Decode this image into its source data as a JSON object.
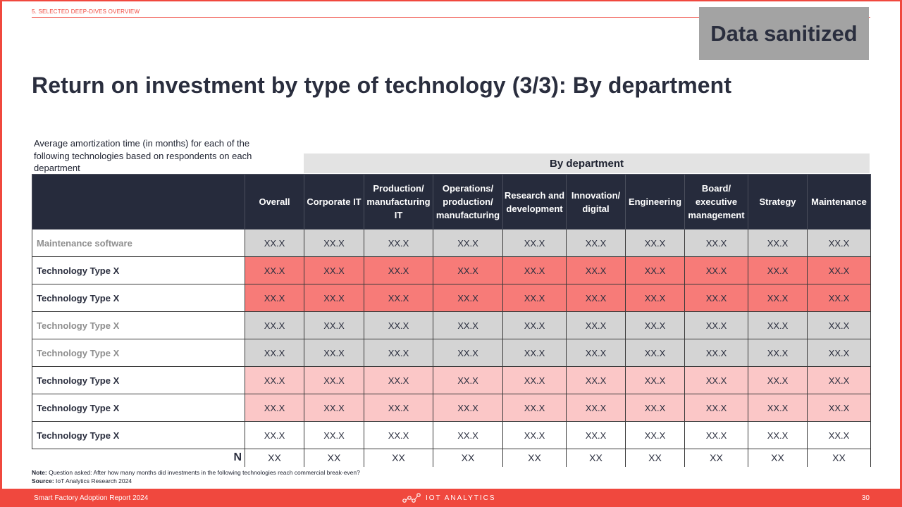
{
  "header": {
    "section_label": "5. SELECTED DEEP-DIVES OVERVIEW",
    "sanitized_badge": "Data sanitized",
    "title": "Return on investment by type of technology (3/3): By department",
    "subtitle": "Average amortization time (in months) for each of the following technologies based on respondents on each department"
  },
  "table": {
    "group_header": "By department",
    "columns": [
      "Overall",
      "Corporate IT",
      "Production/ manufacturing IT",
      "Operations/ production/ manufacturing",
      "Research and development",
      "Innovation/ digital",
      "Engineering",
      "Board/ executive management",
      "Strategy",
      "Maintenance"
    ],
    "rows": [
      {
        "label": "Maintenance software",
        "muted": true,
        "tone": "grey",
        "values": [
          "XX.X",
          "XX.X",
          "XX.X",
          "XX.X",
          "XX.X",
          "XX.X",
          "XX.X",
          "XX.X",
          "XX.X",
          "XX.X"
        ]
      },
      {
        "label": "Technology Type X",
        "muted": false,
        "tone": "red",
        "values": [
          "XX.X",
          "XX.X",
          "XX.X",
          "XX.X",
          "XX.X",
          "XX.X",
          "XX.X",
          "XX.X",
          "XX.X",
          "XX.X"
        ]
      },
      {
        "label": "Technology Type X",
        "muted": false,
        "tone": "red",
        "values": [
          "XX.X",
          "XX.X",
          "XX.X",
          "XX.X",
          "XX.X",
          "XX.X",
          "XX.X",
          "XX.X",
          "XX.X",
          "XX.X"
        ]
      },
      {
        "label": "Technology Type X",
        "muted": true,
        "tone": "grey",
        "values": [
          "XX.X",
          "XX.X",
          "XX.X",
          "XX.X",
          "XX.X",
          "XX.X",
          "XX.X",
          "XX.X",
          "XX.X",
          "XX.X"
        ]
      },
      {
        "label": "Technology Type X",
        "muted": true,
        "tone": "grey",
        "values": [
          "XX.X",
          "XX.X",
          "XX.X",
          "XX.X",
          "XX.X",
          "XX.X",
          "XX.X",
          "XX.X",
          "XX.X",
          "XX.X"
        ]
      },
      {
        "label": "Technology Type X",
        "muted": false,
        "tone": "pink",
        "values": [
          "XX.X",
          "XX.X",
          "XX.X",
          "XX.X",
          "XX.X",
          "XX.X",
          "XX.X",
          "XX.X",
          "XX.X",
          "XX.X"
        ]
      },
      {
        "label": "Technology Type X",
        "muted": false,
        "tone": "pink",
        "values": [
          "XX.X",
          "XX.X",
          "XX.X",
          "XX.X",
          "XX.X",
          "XX.X",
          "XX.X",
          "XX.X",
          "XX.X",
          "XX.X"
        ]
      },
      {
        "label": "Technology Type X",
        "muted": false,
        "tone": "white",
        "values": [
          "XX.X",
          "XX.X",
          "XX.X",
          "XX.X",
          "XX.X",
          "XX.X",
          "XX.X",
          "XX.X",
          "XX.X",
          "XX.X"
        ]
      }
    ],
    "n_label": "N",
    "n_values": [
      "XX",
      "XX",
      "XX",
      "XX",
      "XX",
      "XX",
      "XX",
      "XX",
      "XX",
      "XX"
    ]
  },
  "notes": {
    "note_label": "Note:",
    "note_text": " Question asked: After how many months did investments in the following technologies reach commercial break-even?",
    "source_label": "Source:",
    "source_text": " IoT Analytics Research 2024"
  },
  "footer": {
    "report_name": "Smart Factory Adoption Report 2024",
    "brand": "IOT ANALYTICS",
    "page_number": "30"
  },
  "colors": {
    "accent": "#f0483e",
    "header_dark": "#262b3c",
    "row_grey": "#d4d4d4",
    "row_red": "#f77b78",
    "row_pink": "#fbc7c7"
  }
}
